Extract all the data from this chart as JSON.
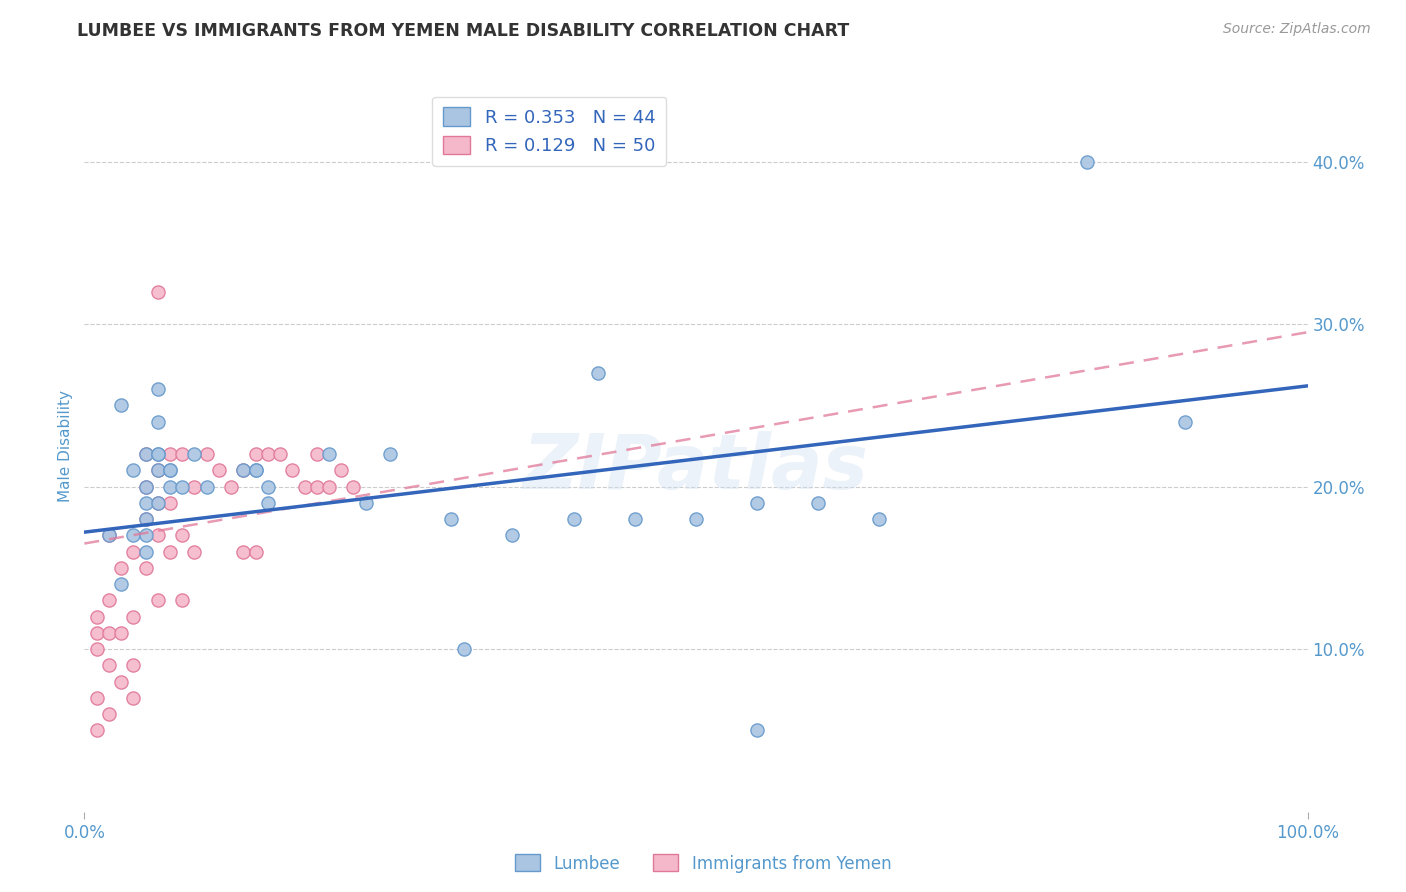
{
  "title": "LUMBEE VS IMMIGRANTS FROM YEMEN MALE DISABILITY CORRELATION CHART",
  "source_text": "Source: ZipAtlas.com",
  "ylabel": "Male Disability",
  "xlabel": "",
  "xlim": [
    0.0,
    1.0
  ],
  "ylim": [
    0.0,
    0.45
  ],
  "yticks": [
    0.1,
    0.2,
    0.3,
    0.4
  ],
  "ytick_labels": [
    "10.0%",
    "20.0%",
    "30.0%",
    "40.0%"
  ],
  "xticks": [
    0.0,
    1.0
  ],
  "xtick_labels": [
    "0.0%",
    "100.0%"
  ],
  "watermark": "ZIPatlas",
  "lumbee_color": "#aac5e2",
  "lumbee_edge_color": "#6699cc",
  "yemen_color": "#f5b8cb",
  "yemen_edge_color": "#e07898",
  "lumbee_line_color": "#3366bb",
  "yemen_line_color": "#e07898",
  "legend_lumbee_label": "R = 0.353   N = 44",
  "legend_yemen_label": "R = 0.129   N = 50",
  "lumbee_R": 0.353,
  "lumbee_N": 44,
  "yemen_R": 0.129,
  "yemen_N": 50,
  "lumbee_x": [
    0.02,
    0.03,
    0.03,
    0.04,
    0.04,
    0.05,
    0.05,
    0.05,
    0.05,
    0.05,
    0.05,
    0.06,
    0.06,
    0.06,
    0.06,
    0.07,
    0.07,
    0.08,
    0.09,
    0.1,
    0.13,
    0.14,
    0.15,
    0.15,
    0.2,
    0.23,
    0.25,
    0.3,
    0.35,
    0.4,
    0.42,
    0.45,
    0.5,
    0.55,
    0.6,
    0.65,
    0.82,
    0.9,
    0.55,
    0.31,
    0.14,
    0.06,
    0.06,
    0.07
  ],
  "lumbee_y": [
    0.17,
    0.14,
    0.25,
    0.17,
    0.21,
    0.16,
    0.19,
    0.2,
    0.22,
    0.18,
    0.17,
    0.19,
    0.22,
    0.21,
    0.24,
    0.2,
    0.21,
    0.2,
    0.22,
    0.2,
    0.21,
    0.21,
    0.2,
    0.19,
    0.22,
    0.19,
    0.22,
    0.18,
    0.17,
    0.18,
    0.27,
    0.18,
    0.18,
    0.19,
    0.19,
    0.18,
    0.4,
    0.24,
    0.05,
    0.1,
    0.21,
    0.26,
    0.22,
    0.21
  ],
  "yemen_x": [
    0.01,
    0.01,
    0.01,
    0.01,
    0.01,
    0.02,
    0.02,
    0.02,
    0.02,
    0.02,
    0.03,
    0.03,
    0.03,
    0.04,
    0.04,
    0.04,
    0.04,
    0.05,
    0.05,
    0.05,
    0.05,
    0.06,
    0.06,
    0.06,
    0.06,
    0.06,
    0.07,
    0.07,
    0.07,
    0.08,
    0.08,
    0.08,
    0.09,
    0.09,
    0.1,
    0.11,
    0.12,
    0.13,
    0.13,
    0.14,
    0.14,
    0.15,
    0.16,
    0.17,
    0.18,
    0.19,
    0.19,
    0.2,
    0.21,
    0.22
  ],
  "yemen_y": [
    0.05,
    0.07,
    0.1,
    0.11,
    0.12,
    0.06,
    0.09,
    0.11,
    0.13,
    0.17,
    0.08,
    0.11,
    0.15,
    0.07,
    0.09,
    0.12,
    0.16,
    0.15,
    0.18,
    0.2,
    0.22,
    0.13,
    0.17,
    0.19,
    0.21,
    0.32,
    0.16,
    0.19,
    0.22,
    0.13,
    0.17,
    0.22,
    0.16,
    0.2,
    0.22,
    0.21,
    0.2,
    0.21,
    0.16,
    0.22,
    0.16,
    0.22,
    0.22,
    0.21,
    0.2,
    0.2,
    0.22,
    0.2,
    0.21,
    0.2
  ],
  "background_color": "#ffffff",
  "grid_color": "#cccccc",
  "title_color": "#333333",
  "axis_color": "#5599cc",
  "tick_label_color": "#5599cc",
  "lumbee_line_x0": 0.0,
  "lumbee_line_y0": 0.172,
  "lumbee_line_x1": 1.0,
  "lumbee_line_y1": 0.262,
  "yemen_line_x0": 0.0,
  "yemen_line_y0": 0.165,
  "yemen_line_x1": 1.0,
  "yemen_line_y1": 0.295
}
